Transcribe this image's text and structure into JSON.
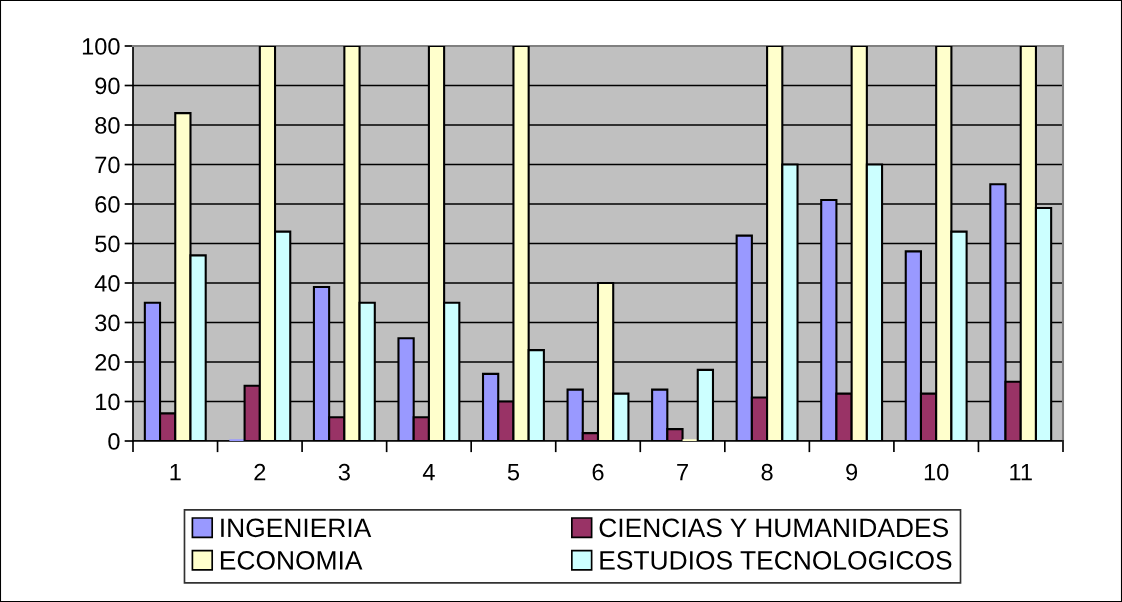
{
  "chart_data": {
    "type": "bar",
    "categories": [
      "1",
      "2",
      "3",
      "4",
      "5",
      "6",
      "7",
      "8",
      "9",
      "10",
      "11"
    ],
    "series": [
      {
        "name": "INGENIERIA",
        "color": "#9999ff",
        "values": [
          35,
          0,
          39,
          26,
          17,
          13,
          13,
          52,
          61,
          48,
          65
        ]
      },
      {
        "name": "CIENCIAS Y HUMANIDADES",
        "color": "#993366",
        "values": [
          7,
          14,
          6,
          6,
          10,
          2,
          3,
          11,
          12,
          12,
          15
        ]
      },
      {
        "name": "ECONOMIA",
        "color": "#ffffcc",
        "values": [
          83,
          100,
          100,
          100,
          100,
          40,
          0,
          100,
          100,
          100,
          100
        ]
      },
      {
        "name": "ESTUDIOS TECNOLOGICOS",
        "color": "#ccffff",
        "values": [
          47,
          53,
          35,
          35,
          23,
          12,
          18,
          70,
          70,
          53,
          59
        ]
      }
    ],
    "ylim": [
      0,
      100
    ],
    "yticks": [
      0,
      10,
      20,
      30,
      40,
      50,
      60,
      70,
      80,
      90,
      100
    ],
    "grid": "y",
    "legend": "bottom"
  }
}
